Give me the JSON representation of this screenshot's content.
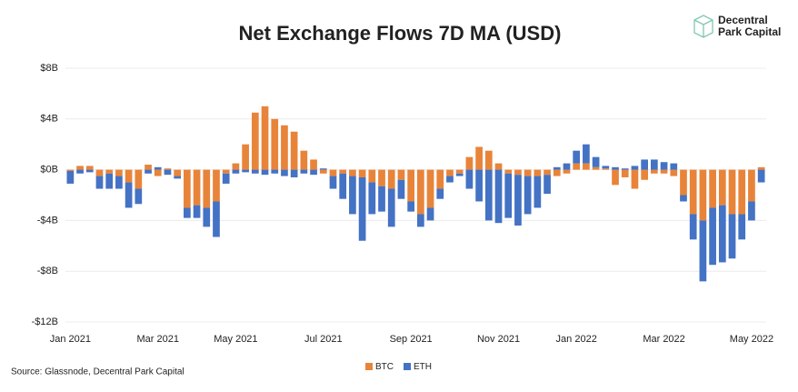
{
  "chart_data": {
    "type": "bar",
    "stacked": true,
    "title": "Net Exchange Flows 7D MA (USD)",
    "source": "Source: Glassnode, Decentral Park Capital",
    "categories": [
      "Jan 2021",
      null,
      null,
      null,
      null,
      null,
      null,
      null,
      null,
      "Mar 2021",
      null,
      null,
      null,
      null,
      null,
      null,
      null,
      "May 2021",
      null,
      null,
      null,
      null,
      null,
      null,
      null,
      null,
      "Jul 2021",
      null,
      null,
      null,
      null,
      null,
      null,
      null,
      null,
      "Sep 2021",
      null,
      null,
      null,
      null,
      null,
      null,
      null,
      null,
      "Nov 2021",
      null,
      null,
      null,
      null,
      null,
      null,
      null,
      "Jan 2022",
      null,
      null,
      null,
      null,
      null,
      null,
      null,
      null,
      "Mar 2022",
      null,
      null,
      null,
      null,
      null,
      null,
      null,
      null,
      "May 2022",
      null
    ],
    "series": [
      {
        "name": "BTC",
        "color": "#e8843a",
        "values": [
          -0.1,
          0.3,
          0.3,
          -0.5,
          -0.3,
          -0.5,
          -1.0,
          -1.5,
          0.4,
          -0.5,
          0.1,
          -0.5,
          -3.0,
          -2.8,
          -3.0,
          -2.5,
          -0.3,
          0.5,
          2.0,
          4.5,
          5.0,
          4.0,
          3.5,
          3.0,
          1.5,
          0.8,
          -0.3,
          -0.5,
          -0.3,
          -0.5,
          -0.6,
          -1.0,
          -1.3,
          -1.5,
          -0.8,
          -2.5,
          -3.5,
          -3.0,
          -1.5,
          -0.5,
          -0.3,
          1.0,
          1.8,
          1.5,
          0.5,
          -0.3,
          -0.4,
          -0.5,
          -0.5,
          -0.4,
          -0.5,
          -0.3,
          0.5,
          0.5,
          0.2,
          0.1,
          -1.2,
          -0.6,
          -1.5,
          -0.8,
          -0.3,
          -0.3,
          -0.5,
          -2.0,
          -3.5,
          -4.0,
          -3.0,
          -2.8,
          -3.5,
          -3.5,
          -2.5,
          0.2
        ]
      },
      {
        "name": "ETH",
        "color": "#4472c4",
        "values": [
          -1.0,
          -0.3,
          -0.2,
          -1.0,
          -1.2,
          -1.0,
          -2.0,
          -1.2,
          -0.3,
          0.2,
          -0.4,
          -0.2,
          -0.8,
          -1.0,
          -1.5,
          -2.8,
          -0.8,
          -0.3,
          -0.2,
          -0.3,
          -0.4,
          -0.3,
          -0.5,
          -0.6,
          -0.3,
          -0.4,
          0.1,
          -1.0,
          -2.0,
          -3.0,
          -5.0,
          -2.5,
          -2.0,
          -3.0,
          -1.5,
          -0.8,
          -1.0,
          -1.0,
          -0.8,
          -0.5,
          -0.2,
          -1.5,
          -2.5,
          -4.0,
          -4.2,
          -3.5,
          -4.0,
          -3.0,
          -2.5,
          -1.5,
          0.2,
          0.5,
          1.0,
          1.5,
          0.8,
          0.2,
          0.2,
          0.1,
          0.3,
          0.8,
          0.8,
          0.6,
          0.5,
          -0.5,
          -2.0,
          -4.8,
          -4.5,
          -4.5,
          -3.5,
          -2.0,
          -1.5,
          -1.0
        ]
      }
    ],
    "ylim": [
      -12,
      8
    ],
    "yticks": [
      {
        "value": -12,
        "label": "-$12B"
      },
      {
        "value": -8,
        "label": "-$8B"
      },
      {
        "value": -4,
        "label": "-$4B"
      },
      {
        "value": 0,
        "label": "$0B"
      },
      {
        "value": 4,
        "label": "$4B"
      },
      {
        "value": 8,
        "label": "$8B"
      }
    ],
    "grid": true,
    "legend": "bottom"
  },
  "logo": {
    "line1": "Decentral",
    "line2": "Park Capital"
  }
}
